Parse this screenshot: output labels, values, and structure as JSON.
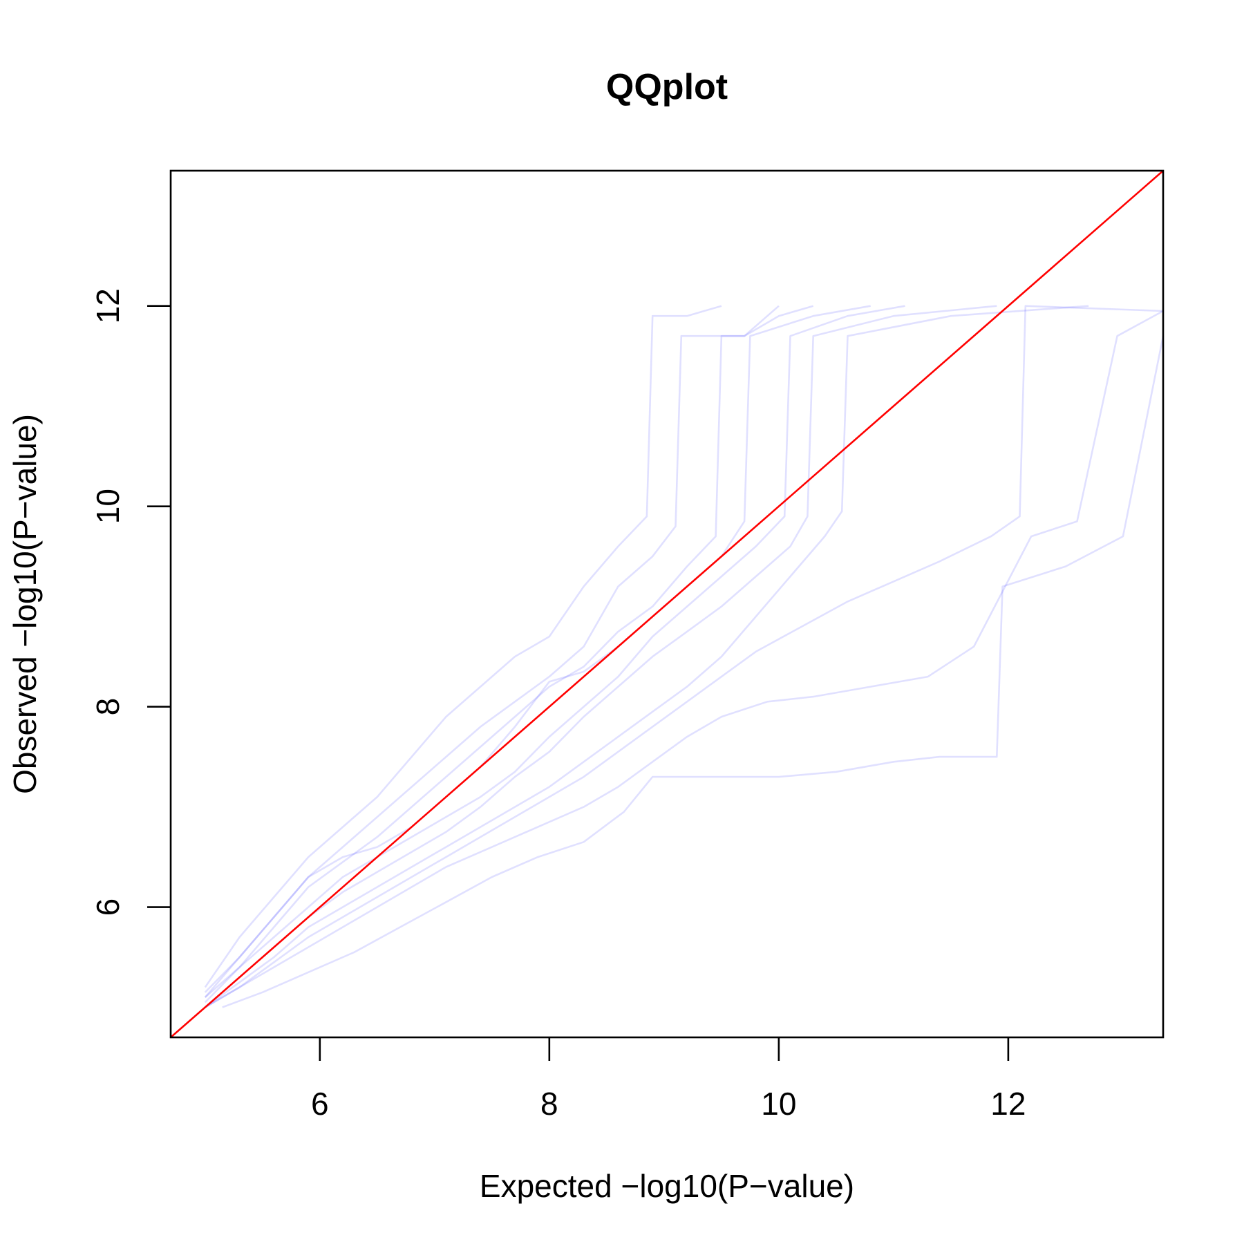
{
  "chart_data": {
    "type": "line",
    "title": "QQplot",
    "xlabel": "Expected −log10(P−value)",
    "ylabel": "Observed −log10(P−value)",
    "xlim": [
      4.7,
      13.35
    ],
    "ylim": [
      4.7,
      13.35
    ],
    "x_ticks": [
      6,
      8,
      10,
      12
    ],
    "y_ticks": [
      6,
      8,
      10,
      12
    ],
    "x_tick_labels": [
      "6",
      "8",
      "10",
      "12"
    ],
    "y_tick_labels": [
      "6",
      "8",
      "10",
      "12"
    ],
    "grid": false,
    "legend": "none",
    "colors": {
      "series": "#0000ff",
      "diagonal": "#ff0000"
    },
    "series_opacity": 0.12,
    "reference_line": {
      "x": [
        4.7,
        13.35
      ],
      "y": [
        4.7,
        13.35
      ]
    },
    "series": [
      {
        "x": [
          5.0,
          5.3,
          5.6,
          5.9,
          6.2,
          6.5,
          6.8,
          7.1,
          7.4,
          7.7,
          8.0,
          8.3,
          8.6,
          8.85,
          8.9,
          9.2,
          9.5
        ],
        "y": [
          5.2,
          5.7,
          6.1,
          6.5,
          6.8,
          7.1,
          7.5,
          7.9,
          8.2,
          8.5,
          8.7,
          9.2,
          9.6,
          9.9,
          11.9,
          11.9,
          12.0
        ]
      },
      {
        "x": [
          5.0,
          5.3,
          5.6,
          5.9,
          6.2,
          6.5,
          6.8,
          7.1,
          7.4,
          7.7,
          8.0,
          8.3,
          8.6,
          8.9,
          9.1,
          9.15,
          9.7,
          10.0
        ],
        "y": [
          5.1,
          5.5,
          5.9,
          6.3,
          6.6,
          6.9,
          7.2,
          7.5,
          7.8,
          8.05,
          8.3,
          8.6,
          9.2,
          9.5,
          9.8,
          11.7,
          11.7,
          12.0
        ]
      },
      {
        "x": [
          5.0,
          5.3,
          5.6,
          5.9,
          6.2,
          6.5,
          6.8,
          7.1,
          7.4,
          7.7,
          8.0,
          8.3,
          8.6,
          8.9,
          9.2,
          9.45,
          9.5,
          9.7,
          10.0,
          10.3
        ],
        "y": [
          5.05,
          5.4,
          5.8,
          6.2,
          6.45,
          6.7,
          7.0,
          7.3,
          7.6,
          7.9,
          8.2,
          8.4,
          8.75,
          9.0,
          9.4,
          9.7,
          11.7,
          11.7,
          11.9,
          12.0
        ]
      },
      {
        "x": [
          5.0,
          5.3,
          5.6,
          5.9,
          6.2,
          6.5,
          6.8,
          7.1,
          7.4,
          7.7,
          8.0,
          8.3,
          8.6,
          8.9,
          9.2,
          9.5,
          9.7,
          9.75,
          10.3,
          10.8
        ],
        "y": [
          5.15,
          5.5,
          5.9,
          6.3,
          6.5,
          6.6,
          6.8,
          7.1,
          7.4,
          7.8,
          8.25,
          8.35,
          8.6,
          8.9,
          9.2,
          9.5,
          9.85,
          11.7,
          11.9,
          12.0
        ]
      },
      {
        "x": [
          5.0,
          5.3,
          5.6,
          5.9,
          6.2,
          6.5,
          6.8,
          7.1,
          7.4,
          7.7,
          8.0,
          8.3,
          8.6,
          8.9,
          9.2,
          9.5,
          9.8,
          10.05,
          10.1,
          10.6,
          11.1
        ],
        "y": [
          5.1,
          5.4,
          5.7,
          6.0,
          6.3,
          6.5,
          6.7,
          6.9,
          7.1,
          7.35,
          7.7,
          8.0,
          8.3,
          8.7,
          9.0,
          9.3,
          9.6,
          9.9,
          11.7,
          11.9,
          12.0
        ]
      },
      {
        "x": [
          5.0,
          5.3,
          5.6,
          5.9,
          6.2,
          6.5,
          6.8,
          7.1,
          7.4,
          7.7,
          8.0,
          8.3,
          8.6,
          8.9,
          9.2,
          9.5,
          9.8,
          10.1,
          10.25,
          10.3,
          11.0,
          11.9
        ],
        "y": [
          5.0,
          5.3,
          5.6,
          5.9,
          6.15,
          6.35,
          6.55,
          6.75,
          7.0,
          7.3,
          7.55,
          7.9,
          8.2,
          8.5,
          8.75,
          9.0,
          9.3,
          9.6,
          9.9,
          11.7,
          11.9,
          12.0
        ]
      },
      {
        "x": [
          5.0,
          5.3,
          5.6,
          5.9,
          6.2,
          6.5,
          6.8,
          7.1,
          7.4,
          7.7,
          8.0,
          8.3,
          8.6,
          8.9,
          9.2,
          9.5,
          9.8,
          10.1,
          10.4,
          10.55,
          10.6,
          11.5,
          12.7
        ],
        "y": [
          5.0,
          5.25,
          5.5,
          5.8,
          6.0,
          6.2,
          6.4,
          6.6,
          6.8,
          7.0,
          7.2,
          7.45,
          7.7,
          7.95,
          8.2,
          8.5,
          8.9,
          9.3,
          9.7,
          9.95,
          11.7,
          11.9,
          12.0
        ]
      },
      {
        "x": [
          5.0,
          5.3,
          5.6,
          5.9,
          6.2,
          6.5,
          6.8,
          7.1,
          7.4,
          7.7,
          8.0,
          8.3,
          8.6,
          8.9,
          9.2,
          9.5,
          9.8,
          10.2,
          10.6,
          11.0,
          11.4,
          11.85,
          12.1,
          12.15,
          13.35
        ],
        "y": [
          5.0,
          5.2,
          5.45,
          5.7,
          5.9,
          6.1,
          6.3,
          6.5,
          6.7,
          6.9,
          7.1,
          7.3,
          7.55,
          7.8,
          8.05,
          8.3,
          8.55,
          8.8,
          9.05,
          9.25,
          9.45,
          9.7,
          9.9,
          12.0,
          11.95
        ]
      },
      {
        "x": [
          5.0,
          5.3,
          5.6,
          5.9,
          6.2,
          6.5,
          6.8,
          7.1,
          7.4,
          7.7,
          8.0,
          8.3,
          8.6,
          8.9,
          9.2,
          9.5,
          9.9,
          10.3,
          10.8,
          11.3,
          11.7,
          12.2,
          12.6,
          12.95,
          13.35
        ],
        "y": [
          5.0,
          5.2,
          5.4,
          5.6,
          5.8,
          6.0,
          6.2,
          6.4,
          6.55,
          6.7,
          6.85,
          7.0,
          7.2,
          7.45,
          7.7,
          7.9,
          8.05,
          8.1,
          8.2,
          8.3,
          8.6,
          9.7,
          9.85,
          11.7,
          11.95
        ]
      },
      {
        "x": [
          5.15,
          5.5,
          5.9,
          6.3,
          6.7,
          7.1,
          7.5,
          7.9,
          8.3,
          8.65,
          8.9,
          9.4,
          10.0,
          10.5,
          11.0,
          11.4,
          11.9,
          11.95,
          12.5,
          13.0,
          13.35
        ],
        "y": [
          5.0,
          5.15,
          5.35,
          5.55,
          5.8,
          6.05,
          6.3,
          6.5,
          6.65,
          6.95,
          7.3,
          7.3,
          7.3,
          7.35,
          7.45,
          7.5,
          7.5,
          9.2,
          9.4,
          9.7,
          11.7
        ]
      }
    ]
  }
}
